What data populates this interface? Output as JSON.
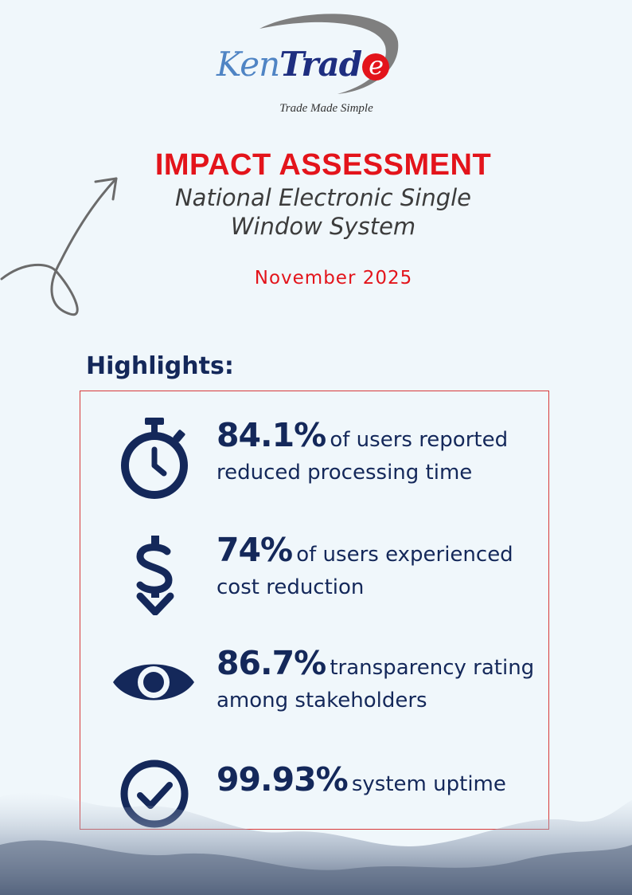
{
  "logo": {
    "brand_part1": "Ken",
    "brand_part2": "Trad",
    "brand_part3": "e",
    "tagline": "Trade Made Simple"
  },
  "header": {
    "title": "IMPACT ASSESSMENT",
    "subtitle_line1": "National Electronic Single",
    "subtitle_line2": "Window System",
    "date": "November 2025"
  },
  "highlights": {
    "heading": "Highlights:",
    "items": [
      {
        "icon": "stopwatch-icon",
        "value": "84.1%",
        "text_line1": "of users reported",
        "text_line2": "reduced processing time"
      },
      {
        "icon": "dollar-down-icon",
        "value": "74%",
        "text_line1": "of users experienced",
        "text_line2": "cost reduction"
      },
      {
        "icon": "eye-icon",
        "value": "86.7%",
        "text_line1": "transparency rating",
        "text_line2": "among stakeholders"
      },
      {
        "icon": "check-circle-icon",
        "value": "99.93%",
        "text_line1": "system uptime",
        "text_line2": ""
      }
    ]
  },
  "colors": {
    "accent": "#e3141b",
    "navy": "#14285a",
    "background": "#f0f7fb"
  }
}
